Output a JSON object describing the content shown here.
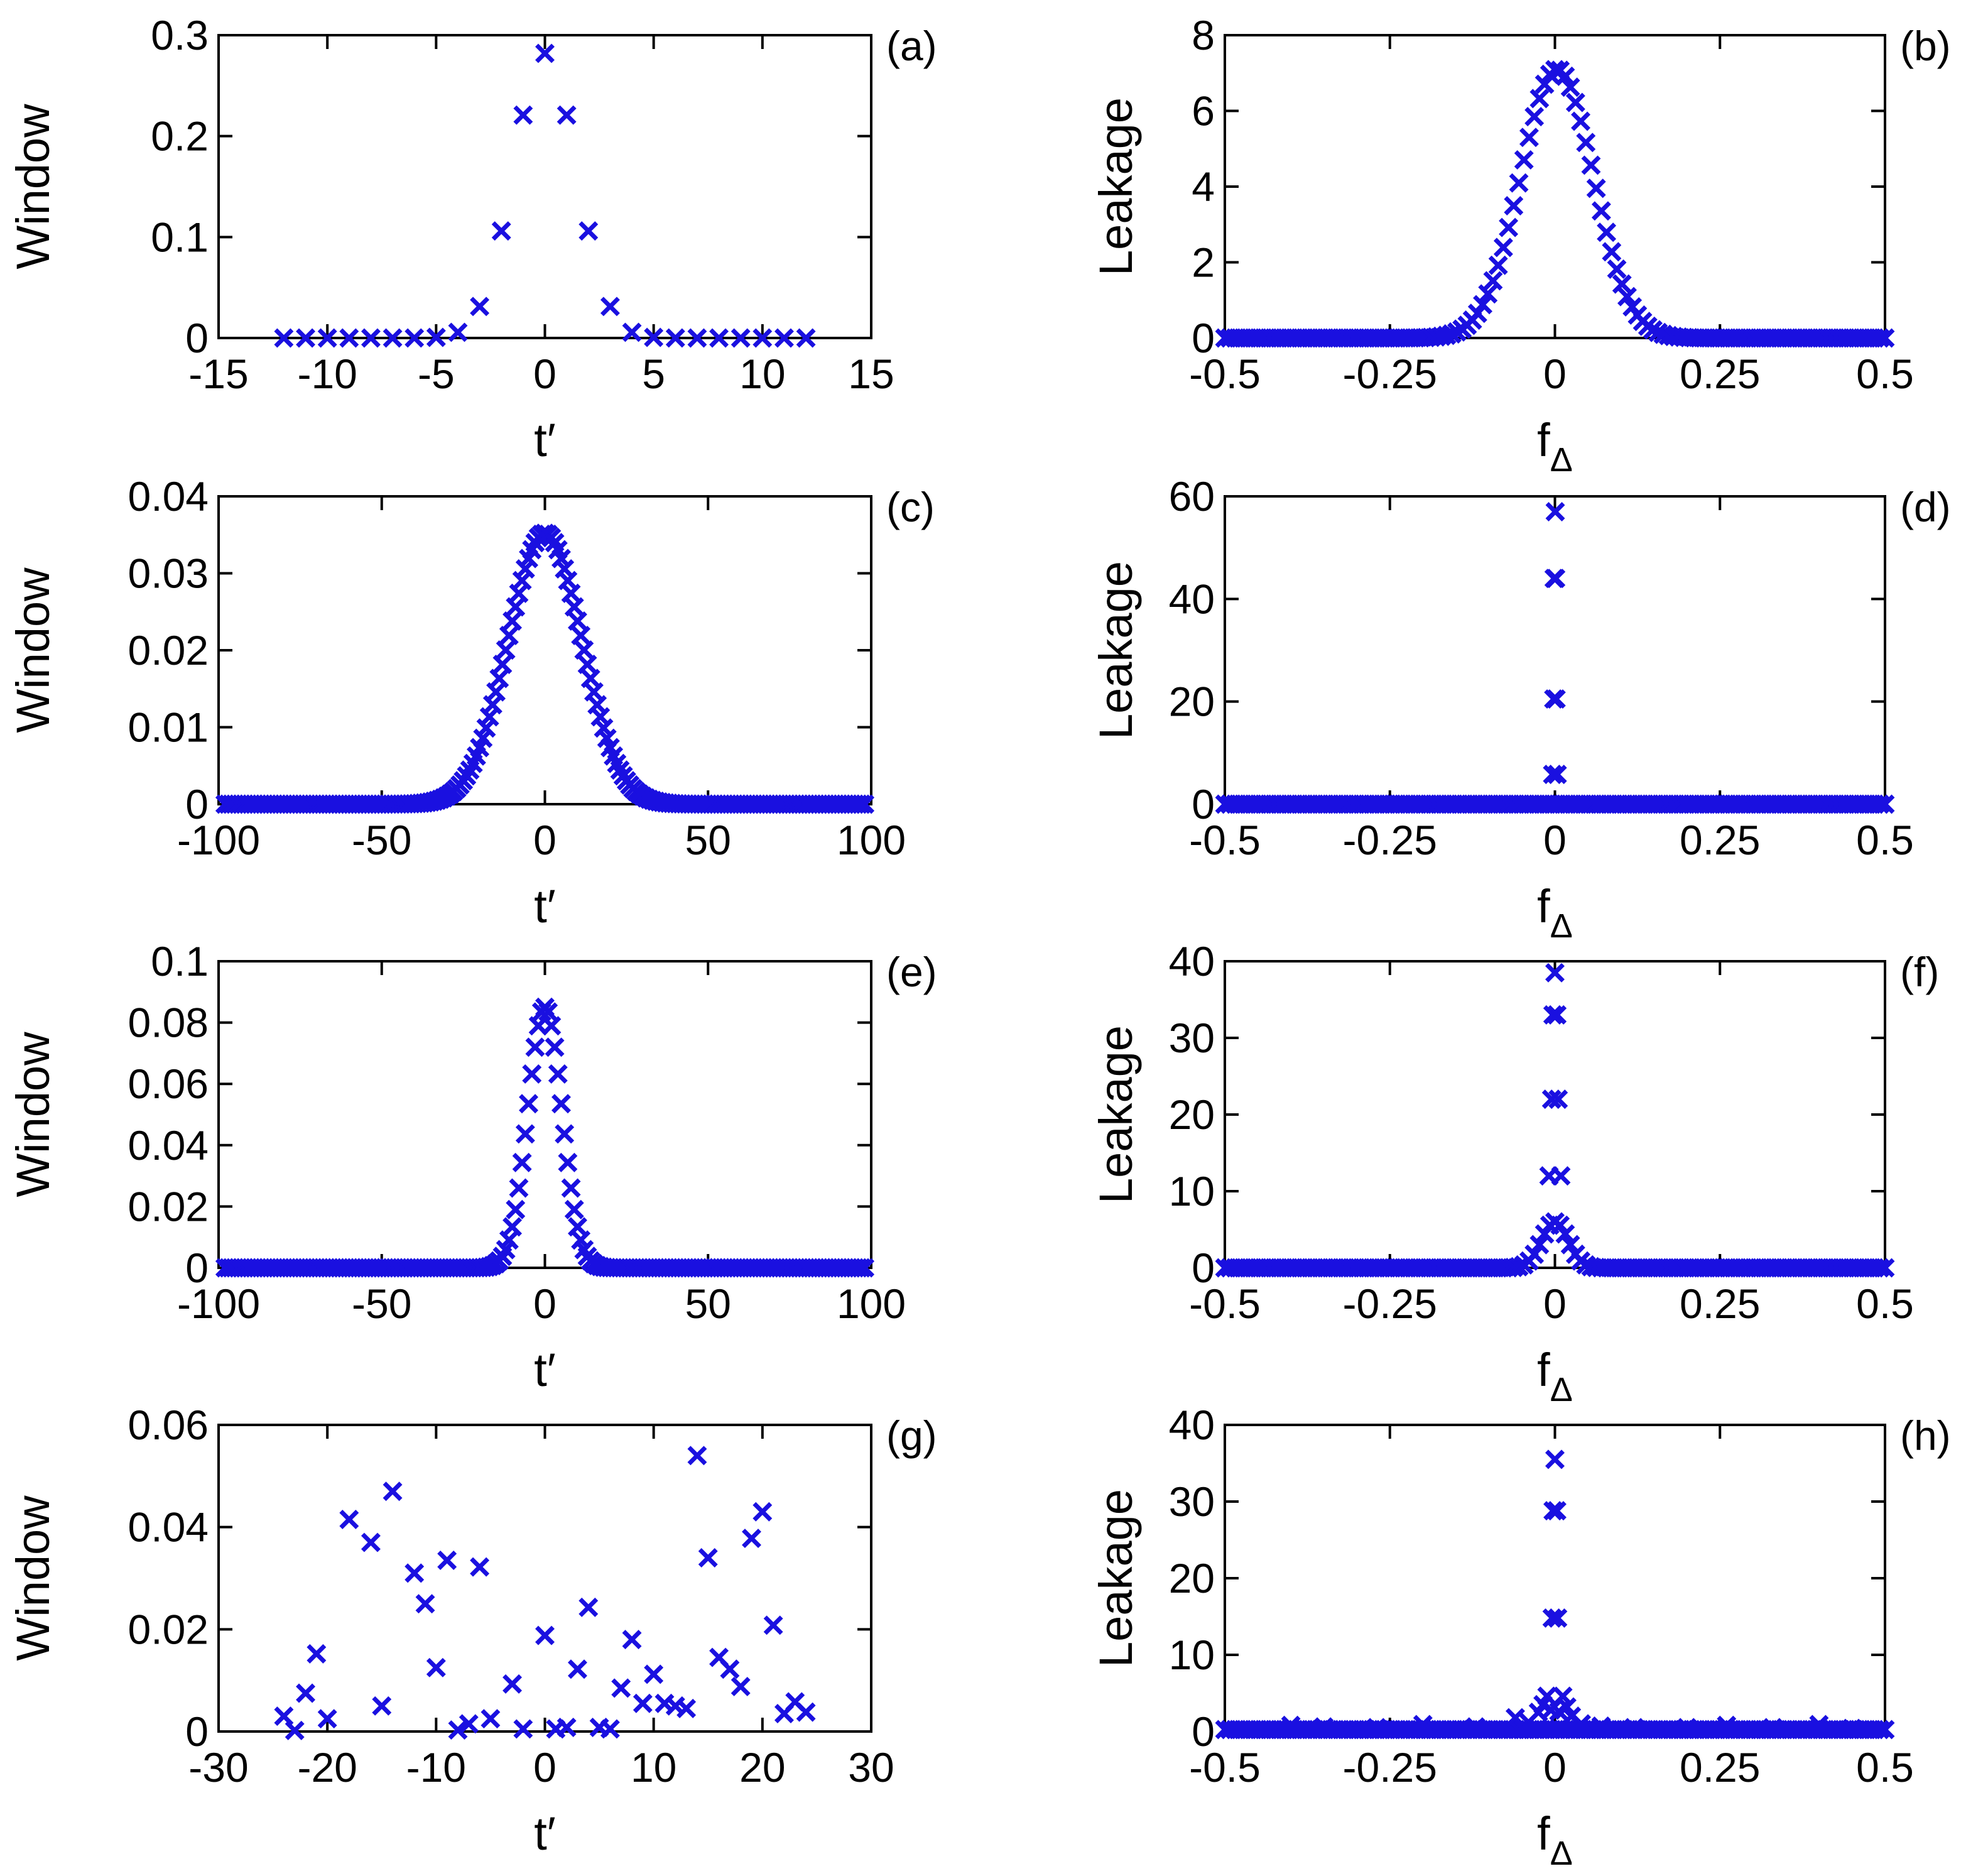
{
  "colors": {
    "marker": "#1a10e0",
    "axis": "#000000",
    "background": "#ffffff"
  },
  "chart_data": [
    {
      "panel": "(a)",
      "type": "scatter",
      "xlabel": "t′",
      "ylabel": "Window",
      "xlim": [
        -15,
        15
      ],
      "ylim": [
        0,
        0.3
      ],
      "xticks": [
        -15,
        -10,
        -5,
        0,
        5,
        10,
        15
      ],
      "xtick_labels": [
        "-15",
        "-10",
        "-5",
        "0",
        "5",
        "10",
        "15"
      ],
      "yticks": [
        0,
        0.1,
        0.2,
        0.3
      ],
      "ytick_labels": [
        "0",
        "0.1",
        "0.2",
        "0.3"
      ],
      "zero_line": true,
      "marker": "x",
      "generator": "gauss",
      "x_from": -12,
      "x_to": 12,
      "x_step": 1,
      "amp": 0.282,
      "center": 0,
      "sigma": 1.43,
      "points": []
    },
    {
      "panel": "(b)",
      "type": "scatter",
      "xlabel": "f",
      "xlabel_sub": "Δ",
      "ylabel": "Leakage",
      "xlim": [
        -0.5,
        0.5
      ],
      "ylim": [
        0,
        8
      ],
      "xticks": [
        -0.5,
        -0.25,
        0,
        0.25,
        0.5
      ],
      "xtick_labels": [
        "-0.5",
        "-0.25",
        "0",
        "0.25",
        "0.5"
      ],
      "yticks": [
        0,
        2,
        4,
        6,
        8
      ],
      "ytick_labels": [
        "0",
        "2",
        "4",
        "6",
        "8"
      ],
      "zero_line": false,
      "marker": "x",
      "generator": "gauss",
      "x_from": -0.5,
      "x_to": 0.5,
      "x_step": 0.0078125,
      "amp": 7.1,
      "center": 0.003,
      "sigma": 0.055,
      "points": []
    },
    {
      "panel": "(c)",
      "type": "scatter",
      "xlabel": "t′",
      "ylabel": "Window",
      "xlim": [
        -100,
        100
      ],
      "ylim": [
        0,
        0.04
      ],
      "xticks": [
        -100,
        -50,
        0,
        50,
        100
      ],
      "xtick_labels": [
        "-100",
        "-50",
        "0",
        "50",
        "100"
      ],
      "yticks": [
        0,
        0.01,
        0.02,
        0.03,
        0.04
      ],
      "ytick_labels": [
        "0",
        "0.01",
        "0.02",
        "0.03",
        "0.04"
      ],
      "zero_line": true,
      "marker": "x",
      "generator": "gauss",
      "x_from": -98,
      "x_to": 98,
      "x_step": 1,
      "amp": 0.0352,
      "center": 0,
      "sigma": 11.3,
      "points": []
    },
    {
      "panel": "(d)",
      "type": "scatter",
      "xlabel": "f",
      "xlabel_sub": "Δ",
      "ylabel": "Leakage",
      "xlim": [
        -0.5,
        0.5
      ],
      "ylim": [
        0,
        60
      ],
      "xticks": [
        -0.5,
        -0.25,
        0,
        0.25,
        0.5
      ],
      "xtick_labels": [
        "-0.5",
        "-0.25",
        "0",
        "0.25",
        "0.5"
      ],
      "yticks": [
        0,
        20,
        40,
        60
      ],
      "ytick_labels": [
        "0",
        "20",
        "40",
        "60"
      ],
      "zero_line": false,
      "marker": "x",
      "generator": "flat",
      "x_from": -0.5,
      "x_to": 0.5,
      "x_step": 0.0078125,
      "baseline": 0,
      "points": [
        [
          -0.0035,
          5.8
        ],
        [
          0.0035,
          5.8
        ],
        [
          -0.0018,
          20.5
        ],
        [
          0.0018,
          20.5
        ],
        [
          -0.0012,
          44
        ],
        [
          0.0012,
          44
        ],
        [
          0.0005,
          57
        ]
      ]
    },
    {
      "panel": "(e)",
      "type": "scatter",
      "xlabel": "t′",
      "ylabel": "Window",
      "xlim": [
        -100,
        100
      ],
      "ylim": [
        0,
        0.1
      ],
      "xticks": [
        -100,
        -50,
        0,
        50,
        100
      ],
      "xtick_labels": [
        "-100",
        "-50",
        "0",
        "50",
        "100"
      ],
      "yticks": [
        0,
        0.02,
        0.04,
        0.06,
        0.08,
        0.1
      ],
      "ytick_labels": [
        "0",
        "0.02",
        "0.04",
        "0.06",
        "0.08",
        "0.1"
      ],
      "zero_line": true,
      "marker": "x",
      "generator": "gauss",
      "x_from": -98,
      "x_to": 98,
      "x_step": 1,
      "amp": 0.085,
      "center": 0,
      "sigma": 5.2,
      "points": []
    },
    {
      "panel": "(f)",
      "type": "scatter",
      "xlabel": "f",
      "xlabel_sub": "Δ",
      "ylabel": "Leakage",
      "xlim": [
        -0.5,
        0.5
      ],
      "ylim": [
        0,
        40
      ],
      "xticks": [
        -0.5,
        -0.25,
        0,
        0.25,
        0.5
      ],
      "xtick_labels": [
        "-0.5",
        "-0.25",
        "0",
        "0.25",
        "0.5"
      ],
      "yticks": [
        0,
        10,
        20,
        30,
        40
      ],
      "ytick_labels": [
        "0",
        "10",
        "20",
        "30",
        "40"
      ],
      "zero_line": false,
      "marker": "x",
      "generator": "gauss",
      "x_from": -0.5,
      "x_to": 0.5,
      "x_step": 0.0078125,
      "amp": 6,
      "center": 0,
      "sigma": 0.02,
      "points": [
        [
          -0.009,
          12
        ],
        [
          0.009,
          12
        ],
        [
          -0.005,
          22
        ],
        [
          0.005,
          22
        ],
        [
          -0.003,
          33
        ],
        [
          0.003,
          33
        ],
        [
          0,
          38.5
        ]
      ]
    },
    {
      "panel": "(g)",
      "type": "scatter",
      "xlabel": "t′",
      "ylabel": "Window",
      "xlim": [
        -30,
        30
      ],
      "ylim": [
        0,
        0.06
      ],
      "xticks": [
        -30,
        -20,
        -10,
        0,
        10,
        20,
        30
      ],
      "xtick_labels": [
        "-30",
        "-20",
        "-10",
        "0",
        "10",
        "20",
        "30"
      ],
      "yticks": [
        0,
        0.02,
        0.04,
        0.06
      ],
      "ytick_labels": [
        "0",
        "0.02",
        "0.04",
        "0.06"
      ],
      "zero_line": true,
      "marker": "x",
      "generator": "none",
      "points": [
        [
          -24,
          0.003
        ],
        [
          -23,
          0.0002
        ],
        [
          -22,
          0.0075
        ],
        [
          -21,
          0.0152
        ],
        [
          -20,
          0.0025
        ],
        [
          -18,
          0.0415
        ],
        [
          -16,
          0.037
        ],
        [
          -15,
          0.005
        ],
        [
          -14,
          0.047
        ],
        [
          -12,
          0.031
        ],
        [
          -11,
          0.025
        ],
        [
          -10,
          0.0125
        ],
        [
          -9,
          0.0335
        ],
        [
          -8,
          0.0003
        ],
        [
          -7,
          0.0015
        ],
        [
          -6,
          0.0322
        ],
        [
          -5,
          0.0025
        ],
        [
          -3,
          0.0093
        ],
        [
          -2,
          0.0005
        ],
        [
          0,
          0.0188
        ],
        [
          1,
          0.0005
        ],
        [
          2,
          0.0008
        ],
        [
          3,
          0.0122
        ],
        [
          4,
          0.0243
        ],
        [
          5,
          0.0008
        ],
        [
          6,
          0.0005
        ],
        [
          7,
          0.0085
        ],
        [
          8,
          0.018
        ],
        [
          9,
          0.0055
        ],
        [
          10,
          0.0112
        ],
        [
          11,
          0.0055
        ],
        [
          12,
          0.005
        ],
        [
          13,
          0.0045
        ],
        [
          14,
          0.054
        ],
        [
          15,
          0.034
        ],
        [
          16,
          0.0145
        ],
        [
          17,
          0.0122
        ],
        [
          18,
          0.0088
        ],
        [
          19,
          0.0378
        ],
        [
          20,
          0.043
        ],
        [
          21,
          0.0208
        ],
        [
          22,
          0.0035
        ],
        [
          23,
          0.0058
        ],
        [
          24,
          0.0038
        ]
      ]
    },
    {
      "panel": "(h)",
      "type": "scatter",
      "xlabel": "f",
      "xlabel_sub": "Δ",
      "ylabel": "Leakage",
      "xlim": [
        -0.5,
        0.5
      ],
      "ylim": [
        0,
        40
      ],
      "xticks": [
        -0.5,
        -0.25,
        0,
        0.25,
        0.5
      ],
      "xtick_labels": [
        "-0.5",
        "-0.25",
        "0",
        "0.25",
        "0.5"
      ],
      "yticks": [
        0,
        10,
        20,
        30,
        40
      ],
      "ytick_labels": [
        "0",
        "10",
        "20",
        "30",
        "40"
      ],
      "zero_line": false,
      "marker": "x",
      "generator": "flat",
      "x_from": -0.5,
      "x_to": 0.5,
      "x_step": 0.0078125,
      "baseline": 0.25,
      "points": [
        [
          -0.4,
          0.8
        ],
        [
          -0.35,
          0.6
        ],
        [
          -0.27,
          0.5
        ],
        [
          -0.2,
          0.9
        ],
        [
          -0.12,
          0.6
        ],
        [
          -0.06,
          1.8
        ],
        [
          -0.04,
          1.2
        ],
        [
          -0.025,
          2.5
        ],
        [
          -0.018,
          3.5
        ],
        [
          -0.012,
          4.6
        ],
        [
          0.012,
          4.6
        ],
        [
          0.018,
          3.2
        ],
        [
          0.025,
          2.0
        ],
        [
          0.04,
          1.0
        ],
        [
          0.07,
          0.7
        ],
        [
          0.12,
          0.5
        ],
        [
          0.2,
          0.5
        ],
        [
          0.26,
          0.8
        ],
        [
          0.33,
          0.5
        ],
        [
          0.4,
          0.9
        ],
        [
          0.45,
          0.4
        ],
        [
          -0.006,
          2.8
        ],
        [
          0.006,
          2.6
        ],
        [
          -0.0042,
          14.8
        ],
        [
          0.0042,
          14.8
        ],
        [
          -0.0028,
          28.8
        ],
        [
          0.0028,
          28.8
        ],
        [
          0,
          35.5
        ]
      ]
    }
  ]
}
